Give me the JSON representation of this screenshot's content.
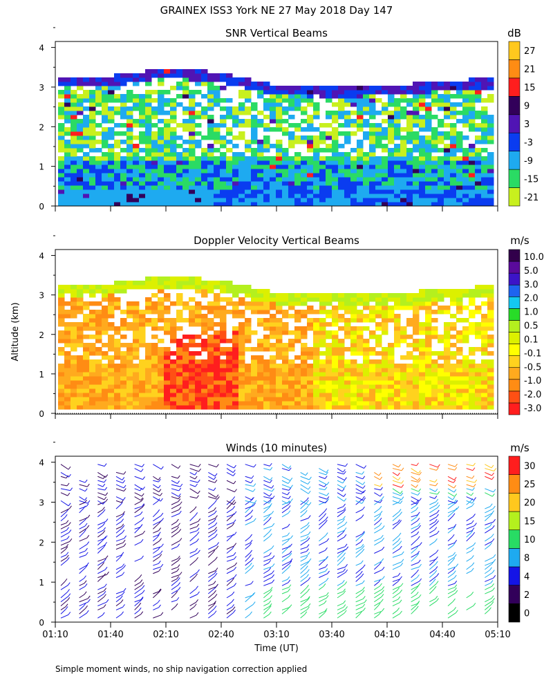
{
  "figure": {
    "title": "GRAINEX ISS3 York NE  27 May 2018 Day 147",
    "footnote": "Simple moment winds, no ship navigation correction applied",
    "ylabel": "Altitude (km)",
    "xlabel": "Time (UT)"
  },
  "colors": {
    "snr_scale": [
      "#c8f01e",
      "#2adb64",
      "#1eaaf0",
      "#0a3cf0",
      "#5014b4",
      "#32005a",
      "#ff1e1e",
      "#ff8c14",
      "#ffc81e"
    ],
    "doppler_scale": [
      "#ff1e1e",
      "#ff5014",
      "#ff8c14",
      "#ffaa1e",
      "#ffd21e",
      "#ffff00",
      "#dcf000",
      "#b4f01e",
      "#28dc28",
      "#14c8f0",
      "#1e64f0",
      "#3c14c8",
      "#5a0a9b",
      "#32004b"
    ],
    "wind_scale": [
      "#000000",
      "#32005a",
      "#1414e6",
      "#1eaaf0",
      "#28dc64",
      "#b4f01e",
      "#ffc81e",
      "#ff8c14",
      "#ff1e1e"
    ]
  },
  "chart_data": [
    {
      "type": "heatmap",
      "title": "SNR Vertical Beams",
      "units": "dB",
      "colorbar_ticks": [
        "27",
        "21",
        "15",
        "9",
        "3",
        "-3",
        "-9",
        "-15",
        "-21"
      ],
      "x_ticks": [
        "01:10",
        "01:40",
        "02:10",
        "02:40",
        "03:10",
        "03:40",
        "04:10",
        "04:40",
        "05:10"
      ],
      "y_ticks": [
        "0",
        "1",
        "2",
        "3",
        "4"
      ],
      "xlim_ut_hours": [
        1.1667,
        5.1667
      ],
      "ylim_km": [
        0,
        4
      ],
      "upper_echo_top_km": [
        {
          "t": "01:10",
          "km": 3.2
        },
        {
          "t": "01:40",
          "km": 3.25
        },
        {
          "t": "02:10",
          "km": 3.45
        },
        {
          "t": "02:40",
          "km": 3.3
        },
        {
          "t": "03:10",
          "km": 3.0
        },
        {
          "t": "03:40",
          "km": 2.95
        },
        {
          "t": "04:10",
          "km": 3.0
        },
        {
          "t": "04:40",
          "km": 3.1
        },
        {
          "t": "05:10",
          "km": 3.2
        }
      ]
    },
    {
      "type": "heatmap",
      "title": "Doppler Velocity Vertical Beams",
      "units": "m/s",
      "colorbar_ticks": [
        "10.0",
        "5.0",
        "3.0",
        "2.0",
        "1.0",
        "0.5",
        "0.1",
        "-0.1",
        "-0.5",
        "-1.0",
        "-2.0",
        "-3.0"
      ],
      "x_ticks": [
        "01:10",
        "01:40",
        "02:10",
        "02:40",
        "03:10",
        "03:40",
        "04:10",
        "04:40",
        "05:10"
      ],
      "y_ticks": [
        "0",
        "1",
        "2",
        "3",
        "4"
      ],
      "xlim_ut_hours": [
        1.1667,
        5.1667
      ],
      "ylim_km": [
        0,
        4
      ]
    },
    {
      "type": "scatter",
      "title": "Winds (10 minutes)",
      "units": "m/s",
      "colorbar_ticks": [
        "30",
        "25",
        "20",
        "15",
        "10",
        "8",
        "4",
        "2",
        "0"
      ],
      "x_ticks": [
        "01:10",
        "01:40",
        "02:10",
        "02:40",
        "03:10",
        "03:40",
        "04:10",
        "04:40",
        "05:10"
      ],
      "y_ticks": [
        "0",
        "1",
        "2",
        "3",
        "4"
      ],
      "xlim_ut_hours": [
        1.1667,
        5.1667
      ],
      "ylim_km": [
        0,
        4
      ],
      "profile_times": [
        "01:13",
        "01:23",
        "01:33",
        "01:43",
        "01:53",
        "02:03",
        "02:13",
        "02:23",
        "02:33",
        "02:43",
        "02:53",
        "03:03",
        "03:13",
        "03:23",
        "03:33",
        "03:43",
        "03:53",
        "04:03",
        "04:13",
        "04:23",
        "04:33",
        "04:43",
        "04:53",
        "05:03"
      ]
    }
  ]
}
